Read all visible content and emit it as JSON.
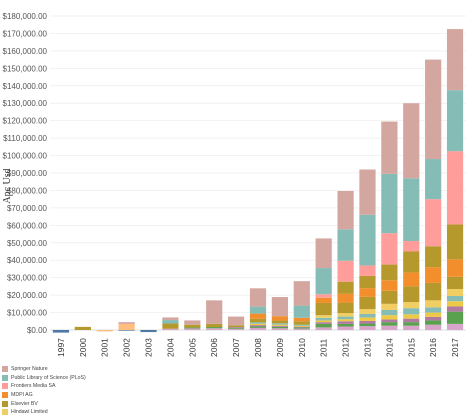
{
  "chart_data": {
    "type": "bar",
    "stacked": true,
    "ylabel": "Apc Usd",
    "xlabel": "",
    "categories": [
      "1997",
      "2000",
      "2001",
      "2002",
      "2003",
      "2004",
      "2005",
      "2006",
      "2007",
      "2008",
      "2009",
      "2010",
      "2011",
      "2012",
      "2013",
      "2014",
      "2015",
      "2016",
      "2017"
    ],
    "ylim": [
      -2000,
      180000
    ],
    "yticks": [
      "$0.00",
      "$10,000.00",
      "$20,000.00",
      "$30,000.00",
      "$40,000.00",
      "$50,000.00",
      "$60,000.00",
      "$70,000.00",
      "$80,000.00",
      "$90,000.00",
      "$100,000.00",
      "$110,000.00",
      "$120,000.00",
      "$130,000.00",
      "$140,000.00",
      "$150,000.00",
      "$160,000.00",
      "$170,000.00",
      "$180,000.00"
    ],
    "ytick_values": [
      0,
      10000,
      20000,
      30000,
      40000,
      50000,
      60000,
      70000,
      80000,
      90000,
      100000,
      110000,
      120000,
      130000,
      140000,
      150000,
      160000,
      170000,
      180000
    ],
    "grid": true,
    "legend_position": "bottom-left",
    "series": [
      {
        "name": "",
        "color": "#4e79a7",
        "values": [
          -1500,
          0,
          0,
          -400,
          -1200,
          0,
          0,
          0,
          0,
          0,
          0,
          0,
          0,
          0,
          0,
          0,
          0,
          0,
          0
        ]
      },
      {
        "name": "",
        "color": "#d6a5c9",
        "values": [
          0,
          0,
          0,
          0,
          0,
          700,
          900,
          1000,
          700,
          1200,
          1000,
          800,
          1500,
          2000,
          2200,
          2500,
          2500,
          3000,
          3500
        ]
      },
      {
        "name": "",
        "color": "#59a14f",
        "values": [
          0,
          0,
          0,
          0,
          0,
          0,
          600,
          700,
          600,
          800,
          800,
          700,
          2000,
          1500,
          1500,
          2000,
          2000,
          2500,
          7000
        ]
      },
      {
        "name": "",
        "color": "#b07aa1",
        "values": [
          0,
          0,
          0,
          0,
          0,
          0,
          0,
          0,
          400,
          800,
          600,
          400,
          1000,
          1500,
          1500,
          1500,
          2000,
          2000,
          3000
        ]
      },
      {
        "name": "",
        "color": "#edc948",
        "values": [
          0,
          0,
          0,
          0,
          0,
          0,
          0,
          0,
          0,
          800,
          700,
          500,
          1000,
          1200,
          2000,
          2500,
          2500,
          2500,
          3000
        ]
      },
      {
        "name": "",
        "color": "#86bcb6",
        "values": [
          0,
          0,
          0,
          0,
          0,
          0,
          0,
          0,
          0,
          800,
          800,
          600,
          1500,
          1500,
          2000,
          3000,
          3500,
          3000,
          3000
        ]
      },
      {
        "name": "Hindawi Limited",
        "color": "#f1ce63",
        "values": [
          0,
          0,
          0,
          0,
          0,
          0,
          0,
          0,
          0,
          0,
          0,
          0,
          1500,
          2000,
          2800,
          3500,
          3500,
          4000,
          4000
        ]
      },
      {
        "name": "Elsevier BV",
        "color": "#b6992d",
        "values": [
          0,
          1800,
          0,
          0,
          0,
          3000,
          1500,
          1800,
          1000,
          2000,
          1500,
          2000,
          7000,
          6000,
          7000,
          7500,
          9000,
          10000,
          7000
        ]
      },
      {
        "name": "MDPI AG",
        "color": "#f28e2b",
        "values": [
          0,
          0,
          0,
          0,
          0,
          0,
          0,
          0,
          0,
          3000,
          2500,
          2000,
          3000,
          5000,
          5000,
          6000,
          8000,
          9000,
          10000
        ]
      },
      {
        "name": "",
        "color": "#ffbe7d",
        "values": [
          0,
          0,
          -800,
          3500,
          0,
          0,
          0,
          0,
          0,
          0,
          0,
          0,
          0,
          0,
          0,
          0,
          0,
          0,
          0
        ]
      },
      {
        "name": "",
        "color": "#b6992d",
        "values": [
          0,
          0,
          0,
          0,
          0,
          0,
          0,
          0,
          0,
          0,
          0,
          0,
          0,
          0,
          0,
          0,
          0,
          0,
          0
        ]
      },
      {
        "name": "Elsevier BV",
        "color": "#b6992d",
        "values": [
          0,
          0,
          0,
          0,
          0,
          0,
          0,
          0,
          0,
          0,
          0,
          0,
          0,
          7000,
          7000,
          9000,
          12000,
          12000,
          20000
        ]
      },
      {
        "name": "Frontiers Media SA",
        "color": "#ff9d9a",
        "values": [
          0,
          0,
          0,
          0,
          0,
          0,
          0,
          0,
          0,
          0,
          0,
          0,
          2000,
          12000,
          6000,
          18000,
          6000,
          27000,
          42000
        ]
      },
      {
        "name": "Public Library of Science (PLoS)",
        "color": "#86bcb6",
        "values": [
          0,
          0,
          0,
          0,
          0,
          2000,
          0,
          0,
          0,
          4000,
          0,
          7000,
          15000,
          18000,
          29000,
          34000,
          36000,
          23000,
          35000
        ]
      },
      {
        "name": "Springer Nature",
        "color": "#d4a6a0",
        "values": [
          0,
          0,
          0,
          1000,
          0,
          1500,
          2500,
          13500,
          5000,
          10500,
          11000,
          14000,
          17000,
          22000,
          26000,
          30000,
          43000,
          57000,
          35000
        ]
      }
    ],
    "legend": [
      {
        "name": "Springer Nature",
        "color": "#d4a6a0"
      },
      {
        "name": "Public Library of Science (PLoS)",
        "color": "#86bcb6"
      },
      {
        "name": "Frontiers Media SA",
        "color": "#ff9d9a"
      },
      {
        "name": "MDPI AG",
        "color": "#f28e2b"
      },
      {
        "name": "Elsevier BV",
        "color": "#b6992d"
      },
      {
        "name": "Hindawi Limited",
        "color": "#f1ce63"
      }
    ]
  }
}
